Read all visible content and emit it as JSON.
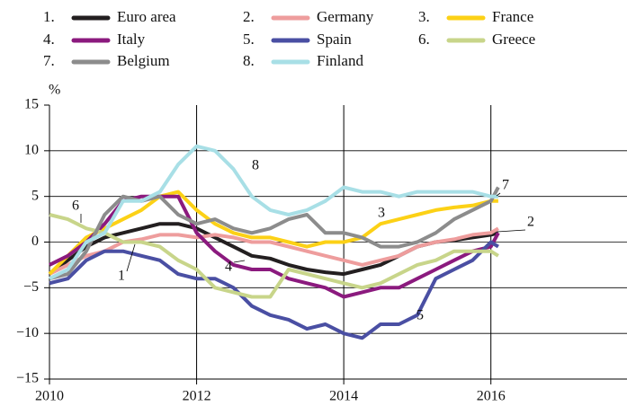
{
  "chart_data": {
    "type": "line",
    "y_label": "%",
    "x": [
      2010,
      2010.25,
      2010.5,
      2010.75,
      2011,
      2011.25,
      2011.5,
      2011.75,
      2012,
      2012.25,
      2012.5,
      2012.75,
      2013,
      2013.25,
      2013.5,
      2013.75,
      2014,
      2014.25,
      2014.5,
      2014.75,
      2015,
      2015.25,
      2015.5,
      2015.75,
      2016,
      2016.1
    ],
    "series": [
      {
        "number": "1.",
        "label": "1",
        "name": "Euro area",
        "color": "#231f20",
        "values": [
          -3.5,
          -2,
          -0.5,
          0.5,
          1,
          1.5,
          2,
          2,
          1.5,
          0.5,
          -0.5,
          -1.5,
          -1.8,
          -2.5,
          -3,
          -3.3,
          -3.5,
          -3,
          -2.5,
          -1.5,
          -0.5,
          0,
          0.2,
          0.5,
          0.8,
          1
        ]
      },
      {
        "number": "2.",
        "label": "2",
        "name": "Germany",
        "color": "#ee9d9d",
        "values": [
          -3.5,
          -2.5,
          -1.5,
          -1,
          0,
          0.3,
          0.8,
          0.8,
          0.5,
          0.8,
          0.5,
          0,
          0,
          -0.5,
          -1,
          -1.5,
          -2,
          -2.5,
          -2,
          -1.5,
          -0.5,
          0,
          0.3,
          0.8,
          1,
          1.5
        ]
      },
      {
        "number": "3.",
        "label": "3",
        "name": "France",
        "color": "#fcd116",
        "values": [
          -3.5,
          -1.5,
          0.5,
          1.5,
          2.5,
          3.5,
          5,
          5.5,
          3.5,
          2,
          1,
          0.5,
          0.5,
          0,
          -0.5,
          0,
          0,
          0.5,
          2,
          2.5,
          3,
          3.5,
          3.8,
          4,
          4.5,
          4.5
        ]
      },
      {
        "number": "4.",
        "label": "4",
        "name": "Italy",
        "color": "#8b1a7e",
        "values": [
          -2.5,
          -1.5,
          0,
          2,
          4.5,
          5,
          5,
          5,
          1,
          -1,
          -2.5,
          -3,
          -3,
          -4,
          -4.5,
          -5,
          -6,
          -5.5,
          -5,
          -5,
          -4,
          -3,
          -2,
          -1,
          -0.5,
          1
        ]
      },
      {
        "number": "5.",
        "label": "5",
        "name": "Spain",
        "color": "#4a4fa3",
        "values": [
          -4.5,
          -4,
          -2,
          -1,
          -1,
          -1.5,
          -2,
          -3.5,
          -4,
          -4,
          -5,
          -7,
          -8,
          -8.5,
          -9.5,
          -9,
          -10,
          -10.5,
          -9,
          -9,
          -8,
          -4,
          -3,
          -2,
          0,
          -0.5
        ]
      },
      {
        "number": "6.",
        "label": "6",
        "name": "Greece",
        "color": "#c8d58a",
        "values": [
          3,
          2.5,
          1.5,
          1,
          0,
          0,
          -0.5,
          -2,
          -3,
          -5,
          -5.5,
          -6,
          -6,
          -3,
          -3.5,
          -4,
          -4.5,
          -5,
          -4.5,
          -3.5,
          -2.5,
          -2,
          -1,
          -1,
          -1,
          -1.5
        ]
      },
      {
        "number": "7.",
        "label": "7",
        "name": "Belgium",
        "color": "#8c8c8c",
        "values": [
          -4,
          -3.5,
          -1,
          3,
          5,
          4.5,
          5,
          3,
          2,
          2.5,
          1.5,
          1,
          1.5,
          2.5,
          3,
          1,
          1,
          0.5,
          -0.5,
          -0.5,
          0,
          1,
          2.5,
          3.5,
          4.5,
          6
        ]
      },
      {
        "number": "8.",
        "label": "8",
        "name": "Finland",
        "color": "#a8dfe6",
        "values": [
          -4,
          -3,
          0,
          1,
          4.5,
          4.5,
          5.5,
          8.5,
          10.5,
          10,
          8,
          5,
          3.5,
          3,
          3.5,
          4.5,
          6,
          5.5,
          5.5,
          5,
          5.5,
          5.5,
          5.5,
          5.5,
          5,
          5
        ]
      }
    ],
    "xlim": [
      2010,
      2017.85
    ],
    "xticks": [
      2010,
      2012,
      2014,
      2016
    ],
    "ylim": [
      -15,
      15
    ],
    "yticks": [
      {
        "value": -15,
        "label": "−15"
      },
      {
        "value": -10,
        "label": "−10"
      },
      {
        "value": -5,
        "label": "−5"
      },
      0,
      5,
      10,
      15
    ],
    "grid": true
  }
}
